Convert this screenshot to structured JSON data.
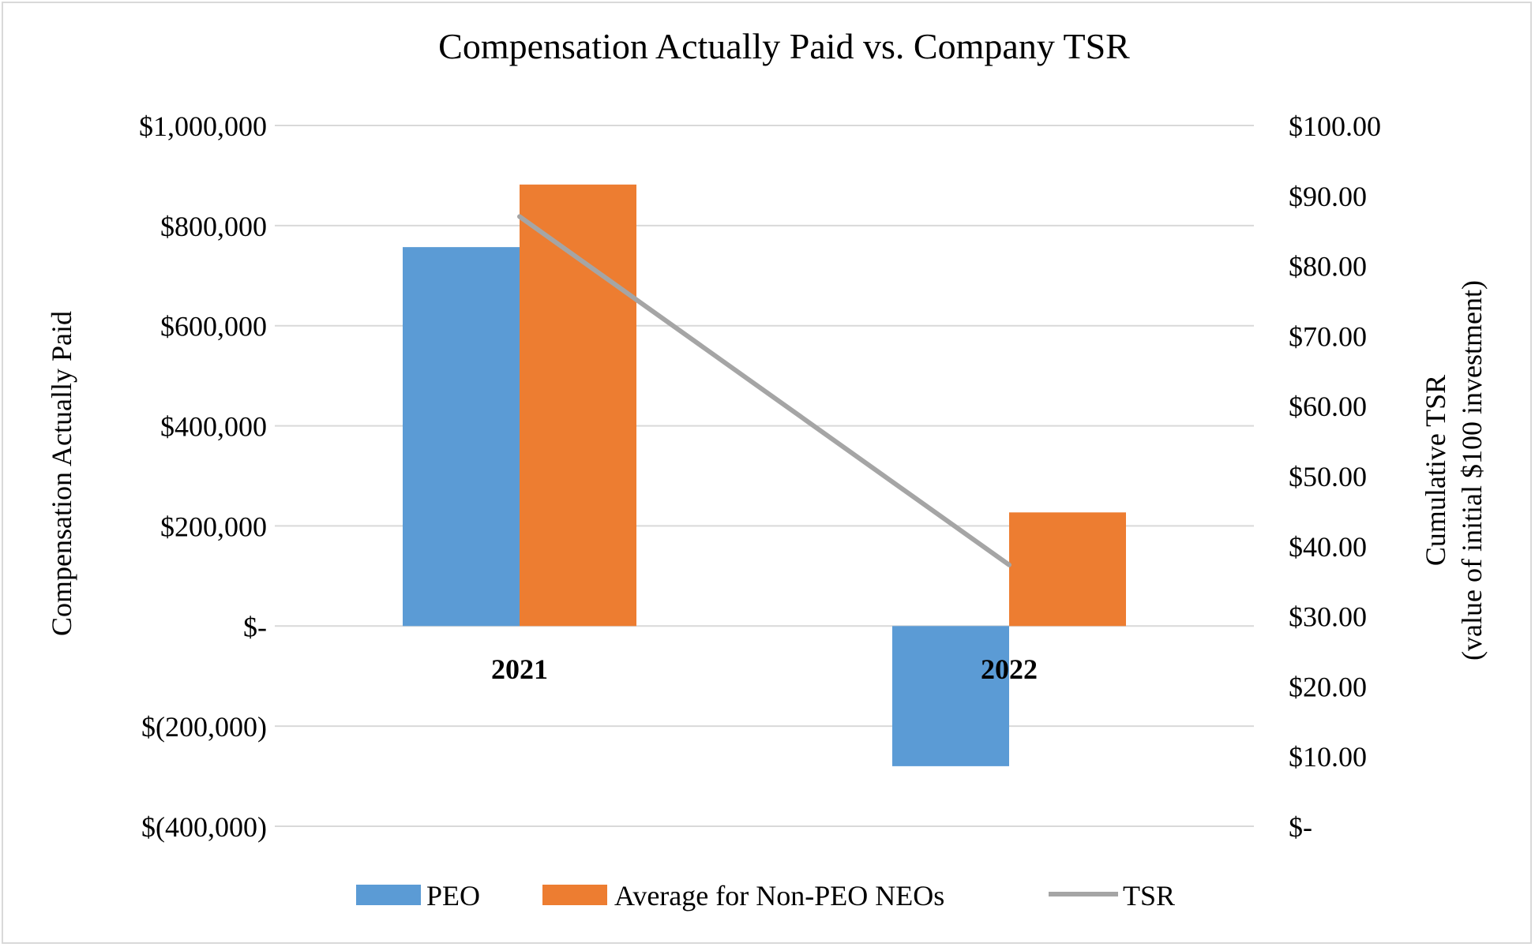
{
  "chart_data": {
    "type": "bar",
    "title": "Compensation Actually Paid vs. Company TSR",
    "categories": [
      "2021",
      "2022"
    ],
    "series": [
      {
        "name": "PEO",
        "kind": "bar",
        "axis": "left",
        "color": "#5b9bd5",
        "values": [
          757000,
          -280000
        ]
      },
      {
        "name": "Average for Non-PEO NEOs",
        "kind": "bar",
        "axis": "left",
        "color": "#ed7d31",
        "values": [
          882000,
          227000
        ]
      },
      {
        "name": "TSR",
        "kind": "line",
        "axis": "right",
        "color": "#a5a5a5",
        "values": [
          87.0,
          37.3
        ]
      }
    ],
    "ylabel": "Compensation Actually Paid",
    "ylabel2": [
      "Cumulative TSR",
      "(value of initial $100 investment)"
    ],
    "ylim": [
      -400000,
      1000000
    ],
    "ylim2": [
      0,
      100
    ],
    "left_ticks": [
      {
        "value": 1000000,
        "label": "$1,000,000"
      },
      {
        "value": 800000,
        "label": "$800,000"
      },
      {
        "value": 600000,
        "label": "$600,000"
      },
      {
        "value": 400000,
        "label": "$400,000"
      },
      {
        "value": 200000,
        "label": "$200,000"
      },
      {
        "value": 0,
        "label": "$-"
      },
      {
        "value": -200000,
        "label": "$(200,000)"
      },
      {
        "value": -400000,
        "label": "$(400,000)"
      }
    ],
    "right_ticks": [
      {
        "value": 100,
        "label": "$100.00"
      },
      {
        "value": 90,
        "label": "$90.00"
      },
      {
        "value": 80,
        "label": "$80.00"
      },
      {
        "value": 70,
        "label": "$70.00"
      },
      {
        "value": 60,
        "label": "$60.00"
      },
      {
        "value": 50,
        "label": "$50.00"
      },
      {
        "value": 40,
        "label": "$40.00"
      },
      {
        "value": 30,
        "label": "$30.00"
      },
      {
        "value": 20,
        "label": "$20.00"
      },
      {
        "value": 10,
        "label": "$10.00"
      },
      {
        "value": 0,
        "label": "$-"
      }
    ],
    "grid": true,
    "legend_position": "bottom",
    "colors": {
      "gridline": "#d9d9d9",
      "frame": "#d9d9d9"
    }
  }
}
